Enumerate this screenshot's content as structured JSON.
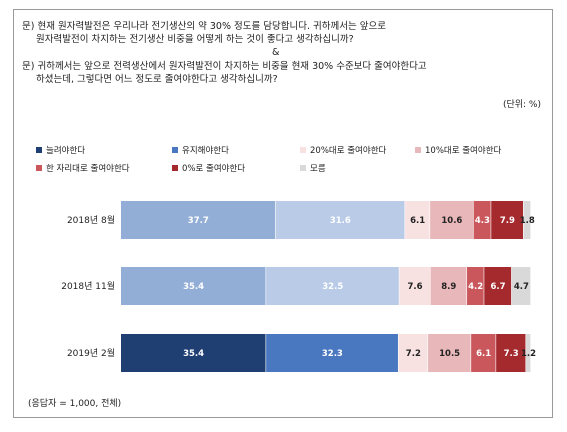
{
  "questions": {
    "q1_line1": "문) 현재 원자력발전은 우리나라 전기생산의 약 30% 정도를 담당합니다. 귀하께서는 앞으로",
    "q1_line2": "원자력발전이 차지하는 전기생산 비중을 어떻게 하는 것이 좋다고 생각하십니까?",
    "separator": "&",
    "q2_line1": "문) 귀하께서는 앞으로 전력생산에서 원자력발전이 차지하는 비중을 현재 30% 수준보다 줄여야한다고",
    "q2_line2": "하셨는데, 그렇다면 어느 정도로 줄여야한다고 생각하십니까?"
  },
  "unit_label": "(단위: %)",
  "footnote": "(응답자 = 1,000, 전체)",
  "colors": {
    "increase": "#1f3f73",
    "maintain": "#4a78c0",
    "reduce20": "#f7e1e1",
    "reduce10": "#e8b7b9",
    "single": "#c9575c",
    "zero": "#a52a2e",
    "unknown": "#d9d9d9",
    "row2018_increase": "#92aed6",
    "row2018_maintain": "#b9cbe7"
  },
  "chart_data": {
    "type": "bar",
    "orientation": "horizontal",
    "stacked": true,
    "categories": [
      "2018년 8월",
      "2018년 11월",
      "2019년 2월"
    ],
    "series": [
      {
        "name": "늘려야한다",
        "values": [
          37.7,
          35.4,
          35.4
        ]
      },
      {
        "name": "유지해야한다",
        "values": [
          31.6,
          32.5,
          32.3
        ]
      },
      {
        "name": "20%대로 줄여야한다",
        "values": [
          6.1,
          7.6,
          7.2
        ]
      },
      {
        "name": "10%대로 줄여야한다",
        "values": [
          10.6,
          8.9,
          10.5
        ]
      },
      {
        "name": "한 자리대로 줄여야한다",
        "values": [
          4.3,
          4.2,
          6.1
        ]
      },
      {
        "name": "0%로 줄여야한다",
        "values": [
          7.9,
          6.7,
          7.3
        ]
      },
      {
        "name": "모름",
        "values": [
          1.8,
          4.7,
          1.2
        ]
      }
    ],
    "xlim": [
      0,
      100
    ],
    "legend_position": "top",
    "grid": false
  }
}
